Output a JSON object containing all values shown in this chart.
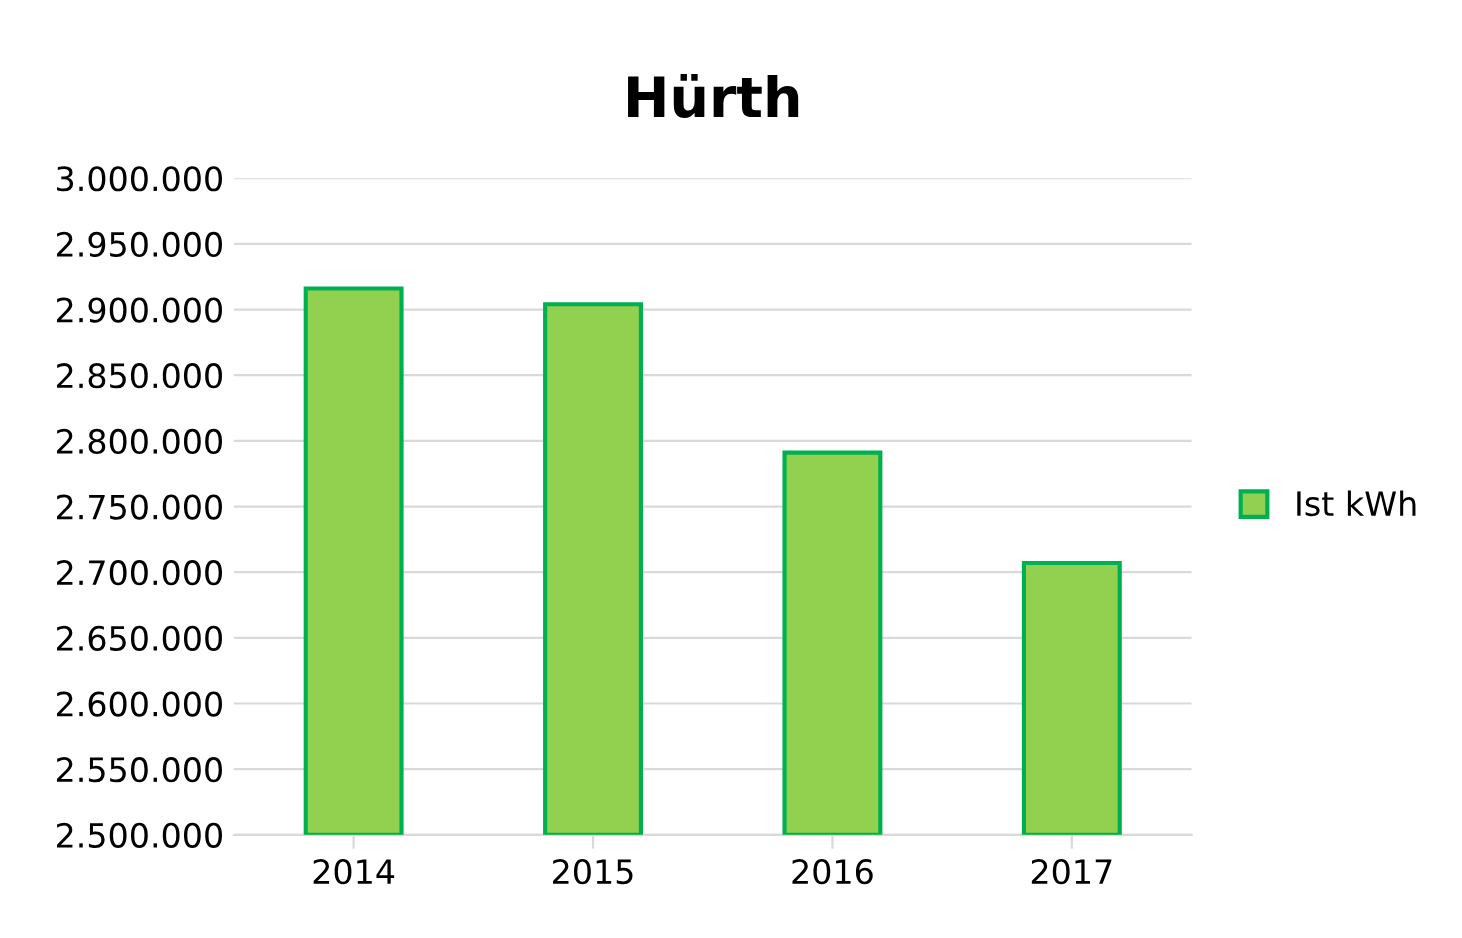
{
  "chart_data": {
    "type": "bar",
    "title": "Hürth",
    "categories": [
      "2014",
      "2015",
      "2016",
      "2017"
    ],
    "series": [
      {
        "name": "Ist kWh",
        "color": "#92d050",
        "values": [
          2916000,
          2904000,
          2791000,
          2707000
        ]
      }
    ],
    "ylim": [
      2500000,
      3000000
    ],
    "yticks": [
      {
        "value": 2500000,
        "label": "2.500.000"
      },
      {
        "value": 2550000,
        "label": "2.550.000"
      },
      {
        "value": 2600000,
        "label": "2.600.000"
      },
      {
        "value": 2650000,
        "label": "2.650.000"
      },
      {
        "value": 2700000,
        "label": "2.700.000"
      },
      {
        "value": 2750000,
        "label": "2.750.000"
      },
      {
        "value": 2800000,
        "label": "2.800.000"
      },
      {
        "value": 2850000,
        "label": "2.850.000"
      },
      {
        "value": 2900000,
        "label": "2.900.000"
      },
      {
        "value": 2950000,
        "label": "2.950.000"
      },
      {
        "value": 3000000,
        "label": "3.000.000"
      }
    ],
    "grid": "y",
    "legend": "right"
  }
}
